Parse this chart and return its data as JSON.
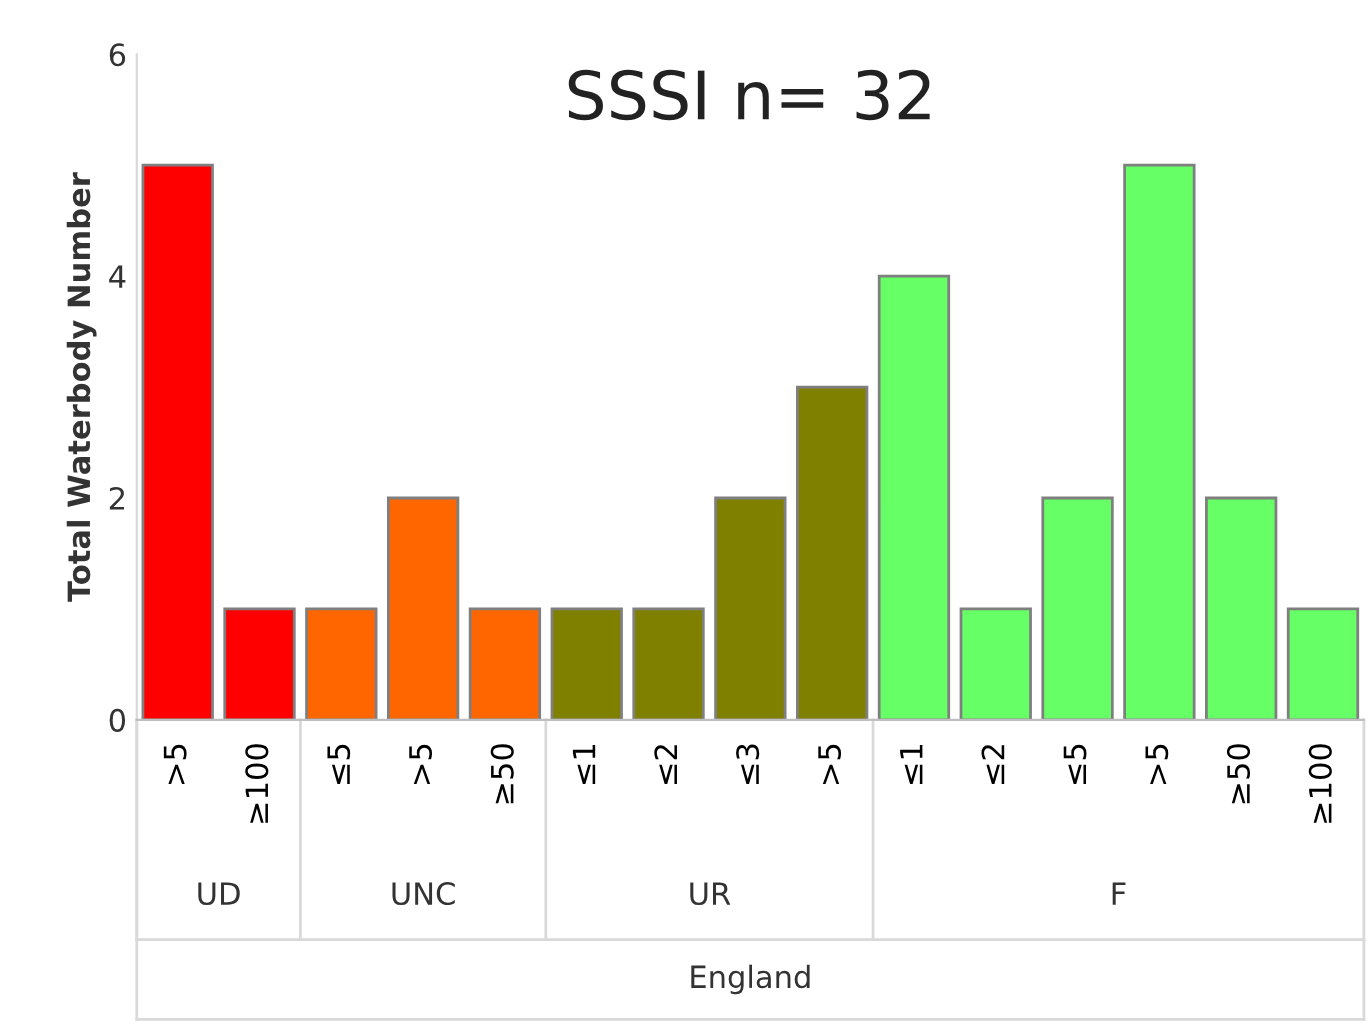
{
  "chart_data": {
    "type": "bar",
    "title": "SSSI n= 32",
    "ylabel": "Total Waterbody Number",
    "categories": [
      ">5",
      "≥100",
      "≤5",
      ">5",
      "≥50",
      "≤1",
      "≤2",
      "≤3",
      ">5",
      "≤1",
      "≤2",
      "≤5",
      ">5",
      "≥50",
      "≥100"
    ],
    "values": [
      5,
      1,
      1,
      2,
      1,
      1,
      1,
      2,
      3,
      4,
      1,
      2,
      5,
      2,
      1
    ],
    "colors": [
      "#ff0000",
      "#ff0000",
      "#ff6600",
      "#ff6600",
      "#ff6600",
      "#808000",
      "#808000",
      "#808000",
      "#808000",
      "#66ff66",
      "#66ff66",
      "#66ff66",
      "#66ff66",
      "#66ff66",
      "#66ff66"
    ],
    "ylim": [
      0,
      6
    ],
    "yticks": [
      0,
      2,
      4,
      6
    ],
    "grid": false,
    "legend": false,
    "annotations": [
      "UD",
      "UNC",
      "UR",
      "F",
      "England"
    ]
  }
}
